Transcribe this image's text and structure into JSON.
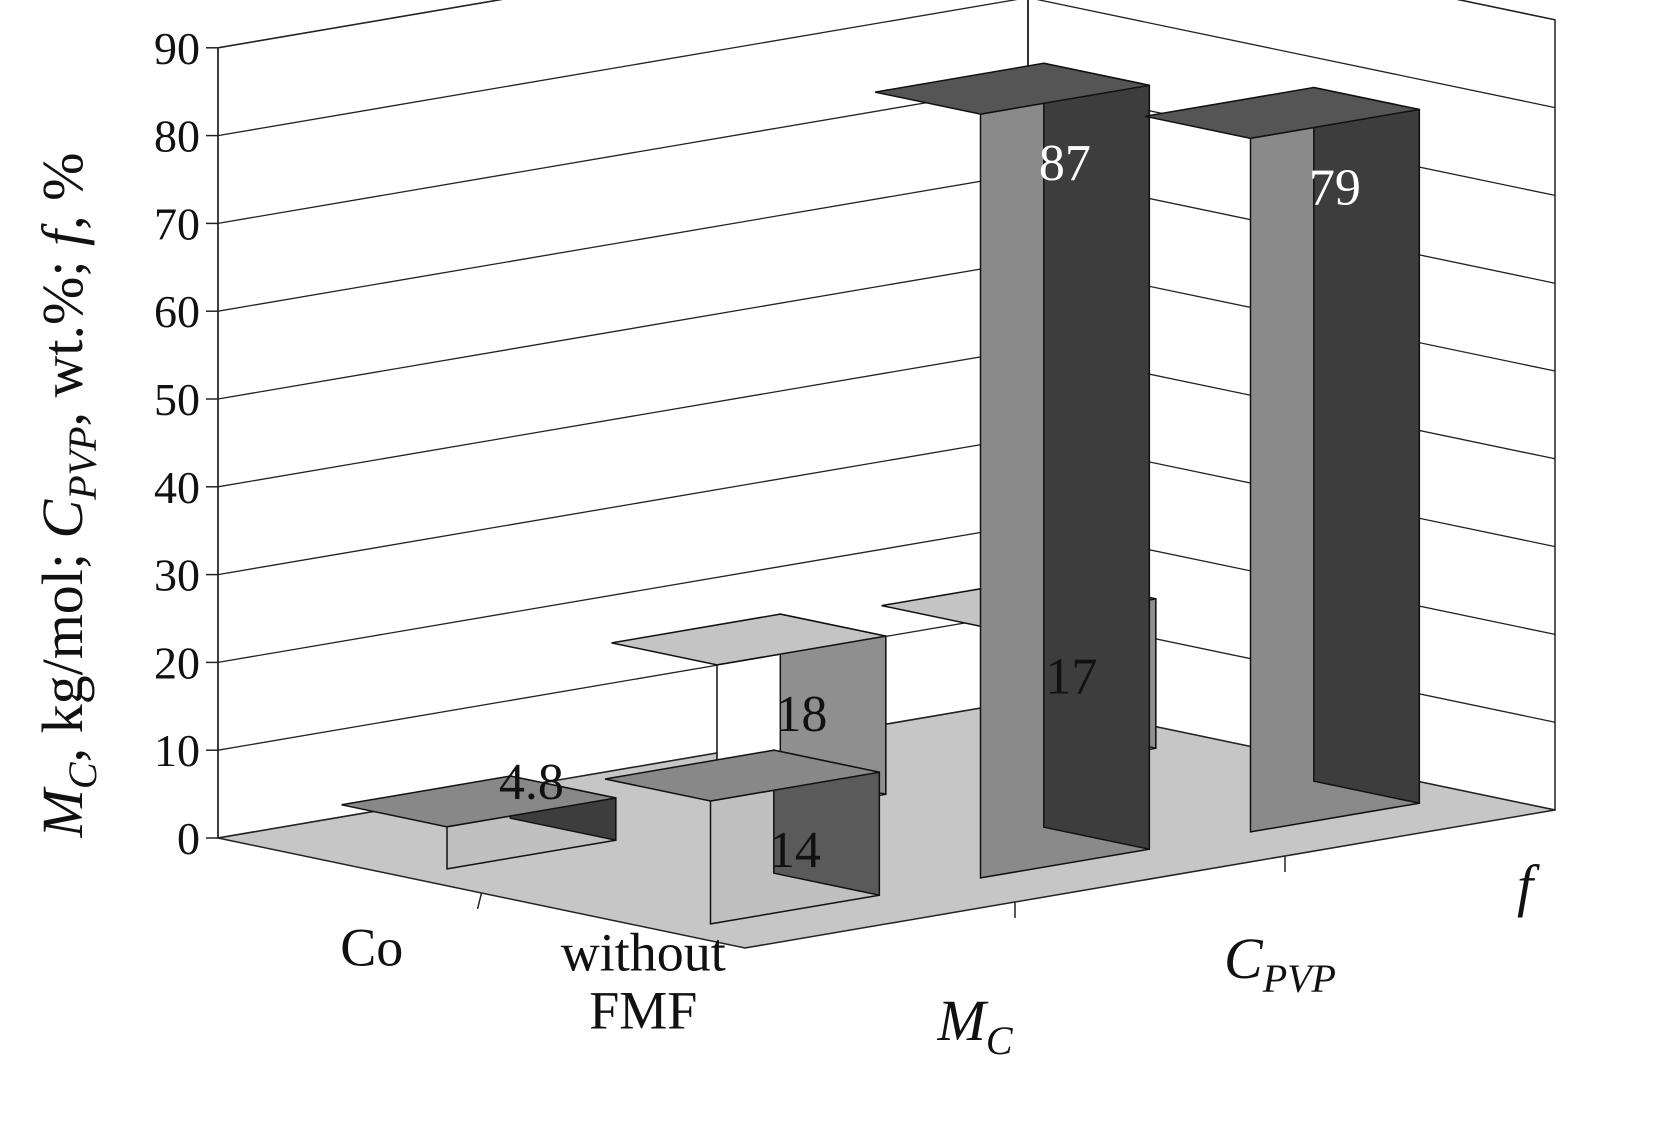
{
  "chart_data": {
    "type": "bar",
    "subtype": "3d-bar",
    "y_axis": {
      "label": {
        "parts": [
          {
            "text": "M",
            "italic": true
          },
          {
            "text": "C",
            "italic": true,
            "sub": true
          },
          {
            "text": ", kg/mol; ",
            "italic": false
          },
          {
            "text": "C",
            "italic": true
          },
          {
            "text": "PVP",
            "italic": true,
            "sub": true
          },
          {
            "text": ", wt.%; ",
            "italic": false
          },
          {
            "text": "f",
            "italic": true
          },
          {
            "text": ", %",
            "italic": false
          }
        ]
      },
      "ylim": [
        0,
        90
      ],
      "ticks": [
        "0",
        "10",
        "20",
        "30",
        "40",
        "50",
        "60",
        "70",
        "80",
        "90"
      ]
    },
    "x_categories": [
      {
        "main": "M",
        "sub": "C",
        "italic": true
      },
      {
        "main": "C",
        "sub": "PVP",
        "italic": true
      },
      {
        "main": "f",
        "sub": "",
        "italic": true
      }
    ],
    "depth_categories": [
      {
        "text": "Co",
        "italic": false
      },
      {
        "text": "without\nFMF",
        "italic": false
      }
    ],
    "series": [
      {
        "name": "Co",
        "values": [
          4.8,
          18,
          17
        ],
        "labels": [
          "4.8",
          "18",
          "17"
        ]
      },
      {
        "name": "without FMF",
        "values": [
          14,
          87,
          79
        ],
        "labels": [
          "14",
          "87",
          "79"
        ]
      }
    ],
    "grid": true,
    "colors": {
      "floor": "#c6c6c6",
      "wall_line": "#222222",
      "white_front": "#ffffff",
      "white_side": "#8f8f8f",
      "white_top": "#c4c4c4",
      "light_front": "#c0c0c0",
      "light_side": "#5a5a5a",
      "light_top": "#888888",
      "dark_front": "#8a8a8a",
      "dark_side": "#3d3d3d",
      "dark_top": "#555555"
    }
  }
}
